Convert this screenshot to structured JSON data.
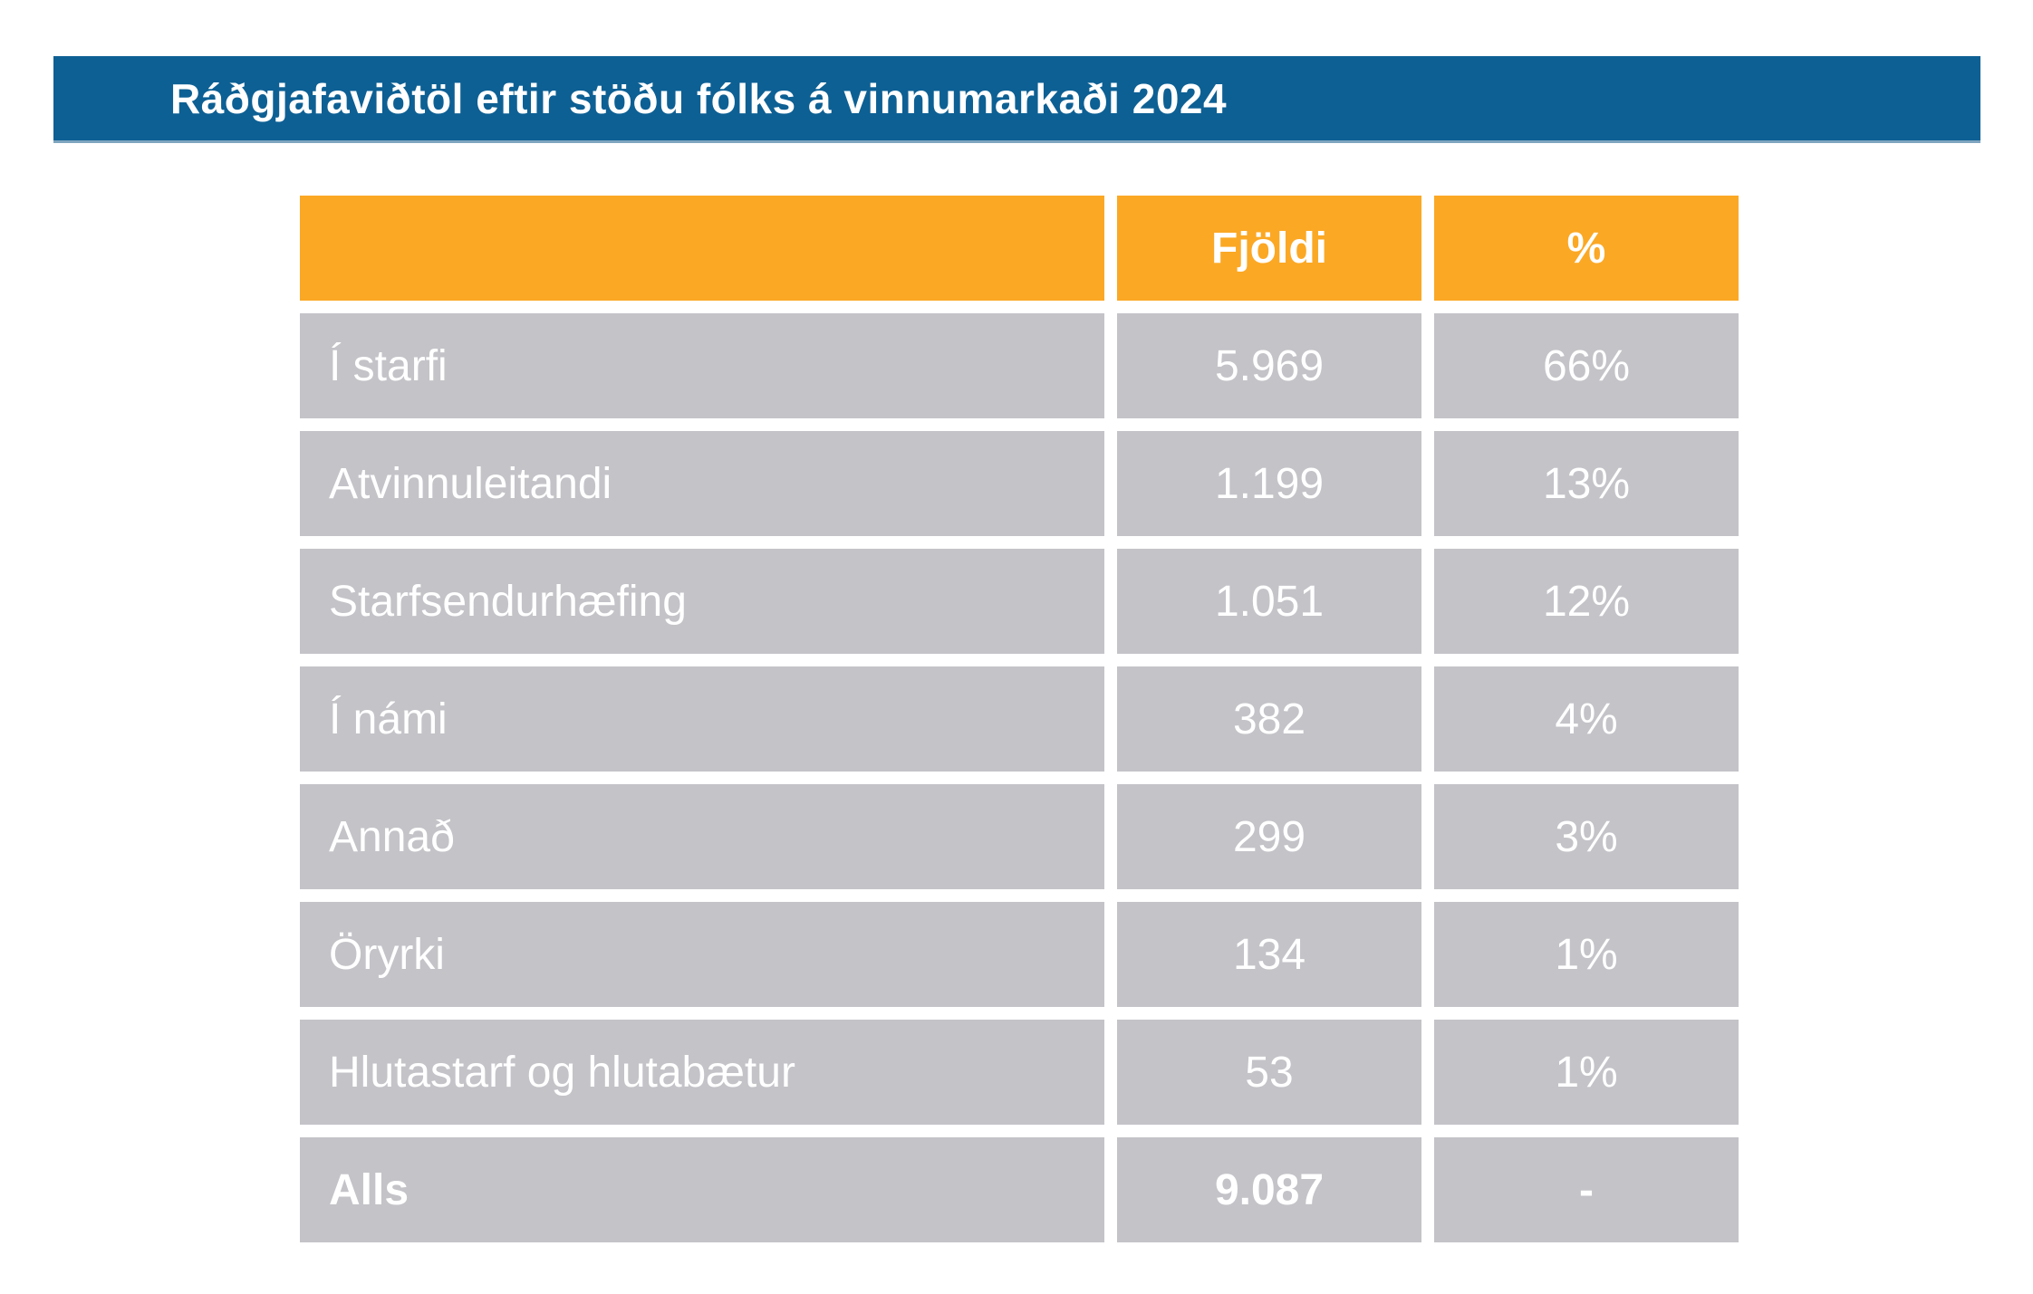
{
  "title": "Ráðgjafaviðtöl eftir stöðu fólks á vinnumarkaði 2024",
  "colors": {
    "banner_blue": "#0d6094",
    "banner_border_light_blue": "#7fa5c0",
    "header_orange": "#fba825",
    "row_gray": "#c3c3c8",
    "text_white": "#ffffff"
  },
  "table": {
    "columns": [
      {
        "label": ""
      },
      {
        "label": "Fjöldi"
      },
      {
        "label": "%"
      }
    ],
    "rows": [
      {
        "label": "Í starfi",
        "count": "5.969",
        "percent": "66%",
        "bold": false
      },
      {
        "label": "Atvinnuleitandi",
        "count": "1.199",
        "percent": "13%",
        "bold": false
      },
      {
        "label": "Starfsendurhæfing",
        "count": "1.051",
        "percent": "12%",
        "bold": false
      },
      {
        "label": "Í námi",
        "count": "382",
        "percent": "4%",
        "bold": false
      },
      {
        "label": "Annað",
        "count": "299",
        "percent": "3%",
        "bold": false
      },
      {
        "label": "Öryrki",
        "count": "134",
        "percent": "1%",
        "bold": false
      },
      {
        "label": "Hlutastarf og hlutabætur",
        "count": "53",
        "percent": "1%",
        "bold": false
      },
      {
        "label": "Alls",
        "count": "9.087",
        "percent": "-",
        "bold": true
      }
    ]
  },
  "chart_data": {
    "type": "table",
    "title": "Ráðgjafaviðtöl eftir stöðu fólks á vinnumarkaði 2024",
    "columns": [
      "",
      "Fjöldi",
      "%"
    ],
    "rows": [
      {
        "category": "Í starfi",
        "fjoldi": 5969,
        "percent": 66
      },
      {
        "category": "Atvinnuleitandi",
        "fjoldi": 1199,
        "percent": 13
      },
      {
        "category": "Starfsendurhæfing",
        "fjoldi": 1051,
        "percent": 12
      },
      {
        "category": "Í námi",
        "fjoldi": 382,
        "percent": 4
      },
      {
        "category": "Annað",
        "fjoldi": 299,
        "percent": 3
      },
      {
        "category": "Öryrki",
        "fjoldi": 134,
        "percent": 1
      },
      {
        "category": "Hlutastarf og hlutabætur",
        "fjoldi": 53,
        "percent": 1
      },
      {
        "category": "Alls",
        "fjoldi": 9087,
        "percent": null
      }
    ],
    "number_format": "thousands separated by '.'",
    "notes": "Total row 'Alls' shows '-' in % column"
  }
}
